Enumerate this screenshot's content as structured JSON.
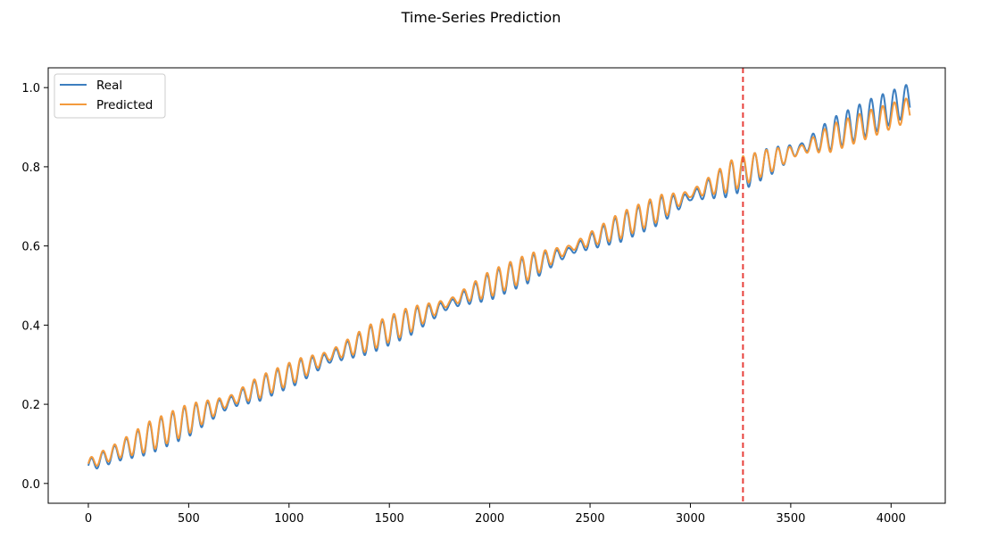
{
  "chart_data": {
    "type": "line",
    "title": "Time-Series Prediction",
    "xlabel": "",
    "ylabel": "",
    "xlim": [
      -200,
      4270
    ],
    "ylim": [
      -0.05,
      1.05
    ],
    "x_ticks": [
      0,
      500,
      1000,
      1500,
      2000,
      2500,
      3000,
      3500,
      4000
    ],
    "y_ticks": [
      0.0,
      0.2,
      0.4,
      0.6,
      0.8,
      1.0
    ],
    "x_tick_labels": [
      "0",
      "500",
      "1000",
      "1500",
      "2000",
      "2500",
      "3000",
      "3500",
      "4000"
    ],
    "y_tick_labels": [
      "0.0",
      "0.2",
      "0.4",
      "0.6",
      "0.8",
      "1.0"
    ],
    "grid": false,
    "legend_position": "top-left",
    "vline": {
      "x": 3262,
      "color": "#e8413c",
      "style": "dashed"
    },
    "x_count": 4096,
    "series": [
      {
        "name": "Real",
        "color": "#3d7ebf",
        "trend_points": [
          [
            0,
            0.045
          ],
          [
            4090,
            0.97
          ]
        ],
        "wave_period": 58,
        "amplitude_envelope": [
          [
            0,
            0.015
          ],
          [
            150,
            0.022
          ],
          [
            300,
            0.04
          ],
          [
            500,
            0.04
          ],
          [
            700,
            0.012
          ],
          [
            850,
            0.03
          ],
          [
            1050,
            0.03
          ],
          [
            1200,
            0.012
          ],
          [
            1400,
            0.035
          ],
          [
            1600,
            0.035
          ],
          [
            1800,
            0.008
          ],
          [
            2000,
            0.035
          ],
          [
            2200,
            0.035
          ],
          [
            2400,
            0.008
          ],
          [
            2650,
            0.035
          ],
          [
            2850,
            0.035
          ],
          [
            3000,
            0.008
          ],
          [
            3200,
            0.045
          ],
          [
            3400,
            0.035
          ],
          [
            3550,
            0.01
          ],
          [
            3700,
            0.04
          ],
          [
            3900,
            0.045
          ],
          [
            4090,
            0.04
          ]
        ]
      },
      {
        "name": "Predicted",
        "color": "#f39a3d",
        "trend_points": [
          [
            0,
            0.05
          ],
          [
            3262,
            0.79
          ],
          [
            4090,
            0.945
          ]
        ],
        "wave_period": 58,
        "amplitude_envelope": [
          [
            0,
            0.013
          ],
          [
            150,
            0.02
          ],
          [
            300,
            0.038
          ],
          [
            500,
            0.038
          ],
          [
            700,
            0.011
          ],
          [
            850,
            0.028
          ],
          [
            1050,
            0.028
          ],
          [
            1200,
            0.011
          ],
          [
            1400,
            0.033
          ],
          [
            1600,
            0.033
          ],
          [
            1800,
            0.007
          ],
          [
            2000,
            0.033
          ],
          [
            2200,
            0.033
          ],
          [
            2400,
            0.007
          ],
          [
            2650,
            0.033
          ],
          [
            2850,
            0.033
          ],
          [
            3000,
            0.007
          ],
          [
            3200,
            0.04
          ],
          [
            3400,
            0.03
          ],
          [
            3550,
            0.009
          ],
          [
            3700,
            0.035
          ],
          [
            3900,
            0.035
          ],
          [
            4090,
            0.03
          ]
        ]
      }
    ]
  }
}
